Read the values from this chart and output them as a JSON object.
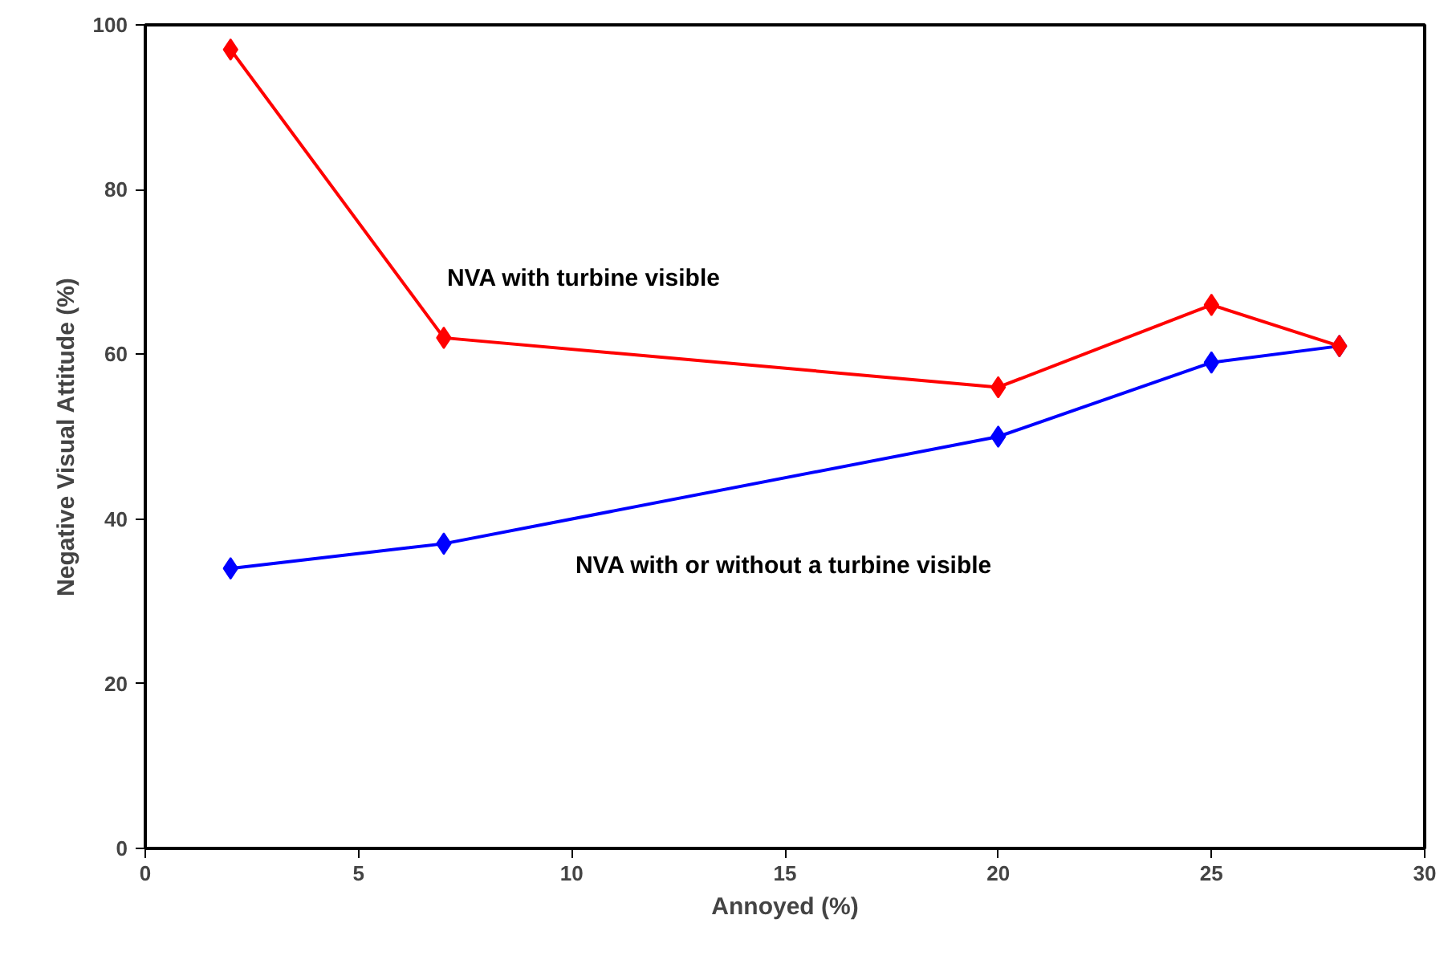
{
  "chart_data": {
    "type": "line",
    "xlabel": "Annoyed (%)",
    "ylabel": "Negative Visual Attitude (%)",
    "x": [
      2,
      7,
      20,
      25,
      28
    ],
    "series": [
      {
        "name": "NVA with turbine visible",
        "color": "#ff0000",
        "values": [
          97,
          62,
          56,
          66,
          61
        ]
      },
      {
        "name": "NVA with or without a turbine visible",
        "color": "#0000ff",
        "values": [
          34,
          37,
          50,
          59,
          61
        ]
      }
    ],
    "xlim": [
      0,
      30
    ],
    "xticks": [
      0,
      5,
      10,
      15,
      20,
      25,
      30
    ],
    "ylim": [
      0,
      100
    ],
    "yticks": [
      0,
      20,
      40,
      60,
      80,
      100
    ],
    "grid": false,
    "marker": "diamond",
    "line_style": "solid"
  }
}
